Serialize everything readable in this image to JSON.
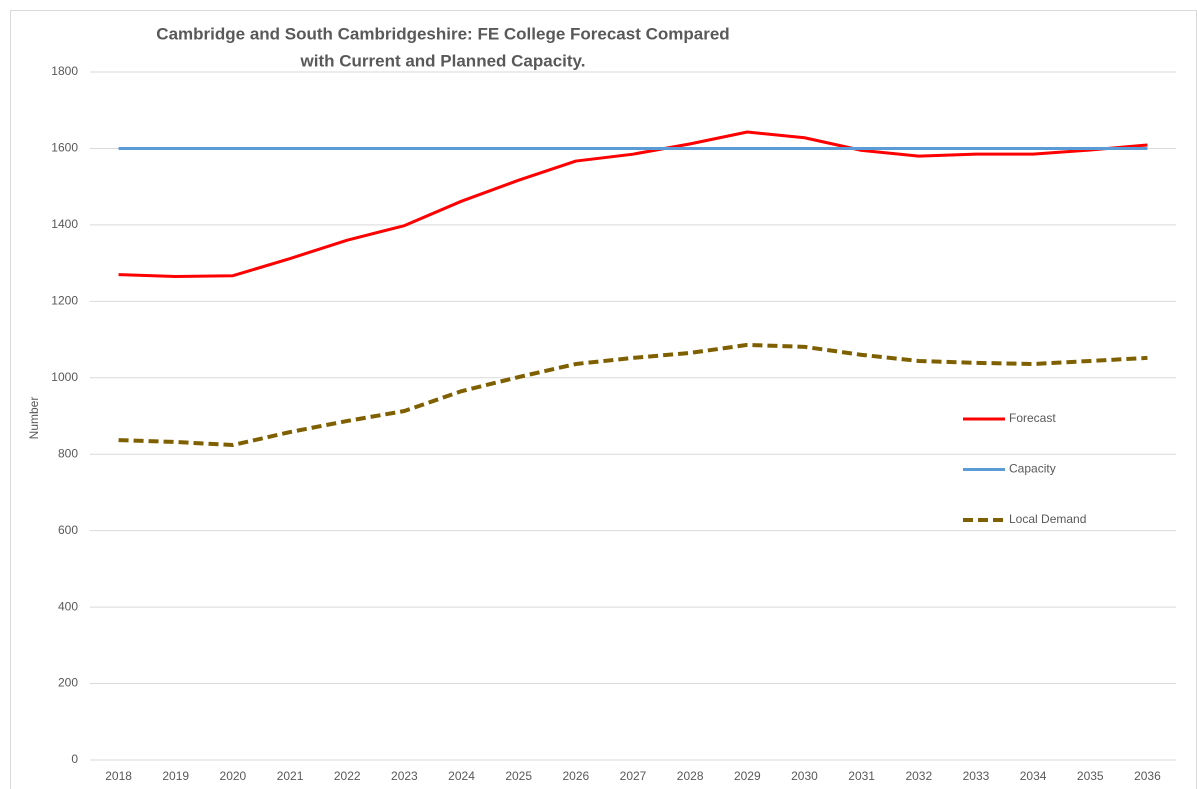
{
  "chart_data": {
    "type": "line",
    "title": [
      "Cambridge and South Cambridgeshire: FE College Forecast Compared",
      "with Current and Planned Capacity."
    ],
    "y_label": "Number",
    "categories": [
      "2018",
      "2019",
      "2020",
      "2021",
      "2022",
      "2023",
      "2024",
      "2025",
      "2026",
      "2027",
      "2028",
      "2029",
      "2030",
      "2031",
      "2032",
      "2033",
      "2034",
      "2035",
      "2036"
    ],
    "series": [
      {
        "name": "Forecast",
        "color": "#ff0000",
        "dashed": false,
        "values": [
          1270,
          1265,
          1267,
          1312,
          1360,
          1398,
          1462,
          1517,
          1567,
          1585,
          1612,
          1643,
          1628,
          1595,
          1580,
          1585,
          1585,
          1596,
          1609
        ]
      },
      {
        "name": "Capacity",
        "color": "#5b9bd5",
        "dashed": false,
        "values": [
          1600,
          1600,
          1600,
          1600,
          1600,
          1600,
          1600,
          1600,
          1600,
          1600,
          1600,
          1600,
          1600,
          1600,
          1600,
          1600,
          1600,
          1600,
          1600
        ]
      },
      {
        "name": "Local Demand",
        "color": "#7f6000",
        "dashed": true,
        "values": [
          837,
          832,
          824,
          858,
          887,
          913,
          965,
          1002,
          1036,
          1052,
          1065,
          1086,
          1081,
          1060,
          1044,
          1039,
          1036,
          1044,
          1052
        ]
      }
    ],
    "ylim": [
      0,
      1800
    ],
    "yticks": [
      0,
      200,
      400,
      600,
      800,
      1000,
      1200,
      1400,
      1600,
      1800
    ],
    "grid": true,
    "legend": "right"
  }
}
